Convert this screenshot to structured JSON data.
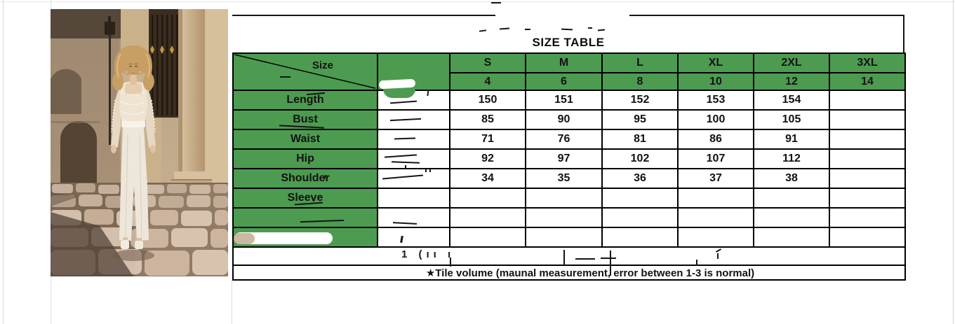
{
  "photo": {
    "description": "Model wearing a white lace long-sleeve jumpsuit standing on a cobblestone street in front of an old stone building with an archway, iron gate and large column"
  },
  "size_table": {
    "title": "SIZE TABLE",
    "corner_label": "Size",
    "size_headers": [
      "S",
      "M",
      "L",
      "XL",
      "2XL",
      "3XL"
    ],
    "numeric_sizes": [
      "4",
      "6",
      "8",
      "10",
      "12",
      "14"
    ],
    "measurement_rows": [
      {
        "label": "Length",
        "values": [
          "150",
          "151",
          "152",
          "153",
          "154",
          ""
        ]
      },
      {
        "label": "Bust",
        "values": [
          "85",
          "90",
          "95",
          "100",
          "105",
          ""
        ]
      },
      {
        "label": "Waist",
        "values": [
          "71",
          "76",
          "81",
          "86",
          "91",
          ""
        ]
      },
      {
        "label": "Hip",
        "values": [
          "92",
          "97",
          "102",
          "107",
          "112",
          ""
        ]
      },
      {
        "label": "Shoulder",
        "values": [
          "34",
          "35",
          "36",
          "37",
          "38",
          ""
        ]
      },
      {
        "label": "Sleeve",
        "values": [
          "",
          "",
          "",
          "",
          "",
          ""
        ]
      },
      {
        "label": "",
        "values": [
          "",
          "",
          "",
          "",
          "",
          ""
        ]
      },
      {
        "label": "",
        "values": [
          "",
          "",
          "",
          "",
          "",
          ""
        ]
      }
    ],
    "footnote": "★Tile volume  (maunal measurement,  error between 1-3 is normal)",
    "erased_remnant": "1 (ıι ı"
  },
  "colors": {
    "header_green": "#4c9b50",
    "border": "#000000",
    "text": "#121212"
  }
}
